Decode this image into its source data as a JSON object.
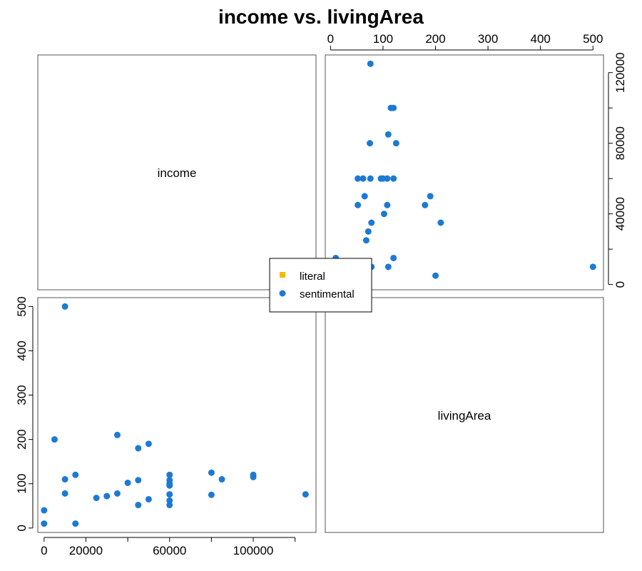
{
  "chart_data": {
    "type": "scatter",
    "title": "income vs. livingArea",
    "variables": [
      "income",
      "livingArea"
    ],
    "legend": {
      "placement": "center",
      "entries": [
        {
          "name": "literal",
          "color": "#F5B800",
          "marker": "square"
        },
        {
          "name": "sentimental",
          "color": "#1C7AD4",
          "marker": "circle"
        }
      ]
    },
    "axes": {
      "income": {
        "range": [
          -3000,
          130000
        ],
        "ticks": [
          0,
          40000,
          80000,
          120000
        ],
        "labeled_ticks_bottom": [
          0,
          20000,
          60000,
          100000
        ],
        "labeled_ticks_right": [
          0,
          40000,
          80000,
          120000
        ]
      },
      "livingArea": {
        "range": [
          -10,
          520
        ],
        "ticks": [
          0,
          100,
          200,
          300,
          400,
          500
        ],
        "labeled_ticks": [
          0,
          100,
          200,
          300,
          400,
          500
        ]
      }
    },
    "points": [
      {
        "income": 0,
        "livingArea": 10,
        "group": "sentimental"
      },
      {
        "income": 0,
        "livingArea": 40,
        "group": "sentimental"
      },
      {
        "income": 5000,
        "livingArea": 200,
        "group": "sentimental"
      },
      {
        "income": 10000,
        "livingArea": 500,
        "group": "sentimental"
      },
      {
        "income": 10000,
        "livingArea": 110,
        "group": "sentimental"
      },
      {
        "income": 10000,
        "livingArea": 78,
        "group": "sentimental"
      },
      {
        "income": 15000,
        "livingArea": 120,
        "group": "sentimental"
      },
      {
        "income": 15000,
        "livingArea": 10,
        "group": "sentimental"
      },
      {
        "income": 25000,
        "livingArea": 68,
        "group": "sentimental"
      },
      {
        "income": 30000,
        "livingArea": 72,
        "group": "sentimental"
      },
      {
        "income": 35000,
        "livingArea": 210,
        "group": "sentimental"
      },
      {
        "income": 35000,
        "livingArea": 78,
        "group": "sentimental"
      },
      {
        "income": 40000,
        "livingArea": 102,
        "group": "sentimental"
      },
      {
        "income": 45000,
        "livingArea": 180,
        "group": "sentimental"
      },
      {
        "income": 45000,
        "livingArea": 108,
        "group": "sentimental"
      },
      {
        "income": 45000,
        "livingArea": 52,
        "group": "sentimental"
      },
      {
        "income": 50000,
        "livingArea": 190,
        "group": "sentimental"
      },
      {
        "income": 50000,
        "livingArea": 65,
        "group": "sentimental"
      },
      {
        "income": 60000,
        "livingArea": 120,
        "group": "sentimental"
      },
      {
        "income": 60000,
        "livingArea": 108,
        "group": "sentimental"
      },
      {
        "income": 60000,
        "livingArea": 100,
        "group": "sentimental"
      },
      {
        "income": 60000,
        "livingArea": 96,
        "group": "sentimental"
      },
      {
        "income": 60000,
        "livingArea": 76,
        "group": "sentimental"
      },
      {
        "income": 60000,
        "livingArea": 62,
        "group": "sentimental"
      },
      {
        "income": 60000,
        "livingArea": 52,
        "group": "sentimental"
      },
      {
        "income": 80000,
        "livingArea": 125,
        "group": "sentimental"
      },
      {
        "income": 80000,
        "livingArea": 75,
        "group": "sentimental"
      },
      {
        "income": 85000,
        "livingArea": 110,
        "group": "sentimental"
      },
      {
        "income": 100000,
        "livingArea": 120,
        "group": "sentimental"
      },
      {
        "income": 100000,
        "livingArea": 115,
        "group": "sentimental"
      },
      {
        "income": 125000,
        "livingArea": 76,
        "group": "sentimental"
      }
    ]
  }
}
